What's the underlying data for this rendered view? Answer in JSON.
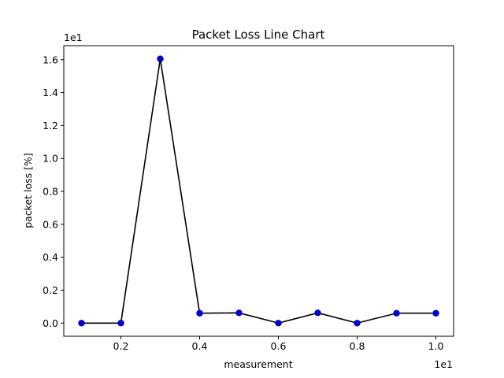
{
  "chart_data": {
    "type": "line",
    "title": "Packet Loss Line Chart",
    "xlabel": "measurement",
    "ylabel": "packet loss [%]",
    "x_offset_text": "1e1",
    "y_offset_text": "1e1",
    "x": [
      1,
      2,
      3,
      4,
      5,
      6,
      7,
      8,
      9,
      10
    ],
    "y": [
      0.0,
      0.0,
      16.05,
      0.6,
      0.62,
      0.0,
      0.62,
      0.0,
      0.6,
      0.6
    ],
    "xlim": [
      0.55,
      10.45
    ],
    "ylim": [
      -0.8,
      16.85
    ],
    "x_ticks": [
      2,
      4,
      6,
      8,
      10
    ],
    "x_tick_labels": [
      "0.2",
      "0.4",
      "0.6",
      "0.8",
      "1.0"
    ],
    "y_ticks": [
      0,
      2,
      4,
      6,
      8,
      10,
      12,
      14,
      16
    ],
    "y_tick_labels": [
      "0.0",
      "0.2",
      "0.4",
      "0.6",
      "0.8",
      "1.0",
      "1.2",
      "1.4",
      "1.6"
    ],
    "grid": false,
    "line_color": "#000000",
    "marker_color": "#0000cc"
  }
}
